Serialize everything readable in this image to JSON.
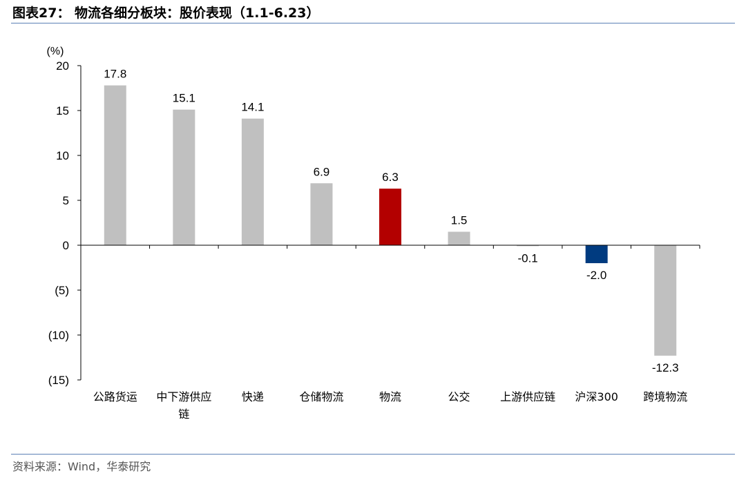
{
  "header": {
    "title": "图表27：  物流各细分板块：股价表现（1.1-6.23）"
  },
  "footer": {
    "source": "资料来源：Wind，华泰研究"
  },
  "chart_data": {
    "type": "bar",
    "title": "",
    "unit_label": "(%)",
    "xlabel": "",
    "ylabel": "",
    "ylim": [
      -15,
      20
    ],
    "yticks": [
      20,
      15,
      10,
      5,
      0,
      -5,
      -10,
      -15
    ],
    "ytick_labels": [
      "20",
      "15",
      "10",
      "5",
      "0",
      "(5)",
      "(10)",
      "(15)"
    ],
    "categories": [
      "公路货运",
      "中下游供应链",
      "快递",
      "仓储物流",
      "物流",
      "公交",
      "上游供应链",
      "沪深300",
      "跨境物流"
    ],
    "category_lines": [
      [
        "公路货运"
      ],
      [
        "中下游供应",
        "链"
      ],
      [
        "快递"
      ],
      [
        "仓储物流"
      ],
      [
        "物流"
      ],
      [
        "公交"
      ],
      [
        "上游供应链"
      ],
      [
        "沪深300"
      ],
      [
        "跨境物流"
      ]
    ],
    "values": [
      17.8,
      15.1,
      14.1,
      6.9,
      6.3,
      1.5,
      -0.1,
      -2.0,
      -12.3
    ],
    "value_labels": [
      "17.8",
      "15.1",
      "14.1",
      "6.9",
      "6.3",
      "1.5",
      "-0.1",
      "-2.0",
      "-12.3"
    ],
    "bar_colors": [
      "#c0c0c0",
      "#c0c0c0",
      "#c0c0c0",
      "#c0c0c0",
      "#b30000",
      "#c0c0c0",
      "#c0c0c0",
      "#003b80",
      "#c0c0c0"
    ],
    "grid": false,
    "legend": "none"
  }
}
